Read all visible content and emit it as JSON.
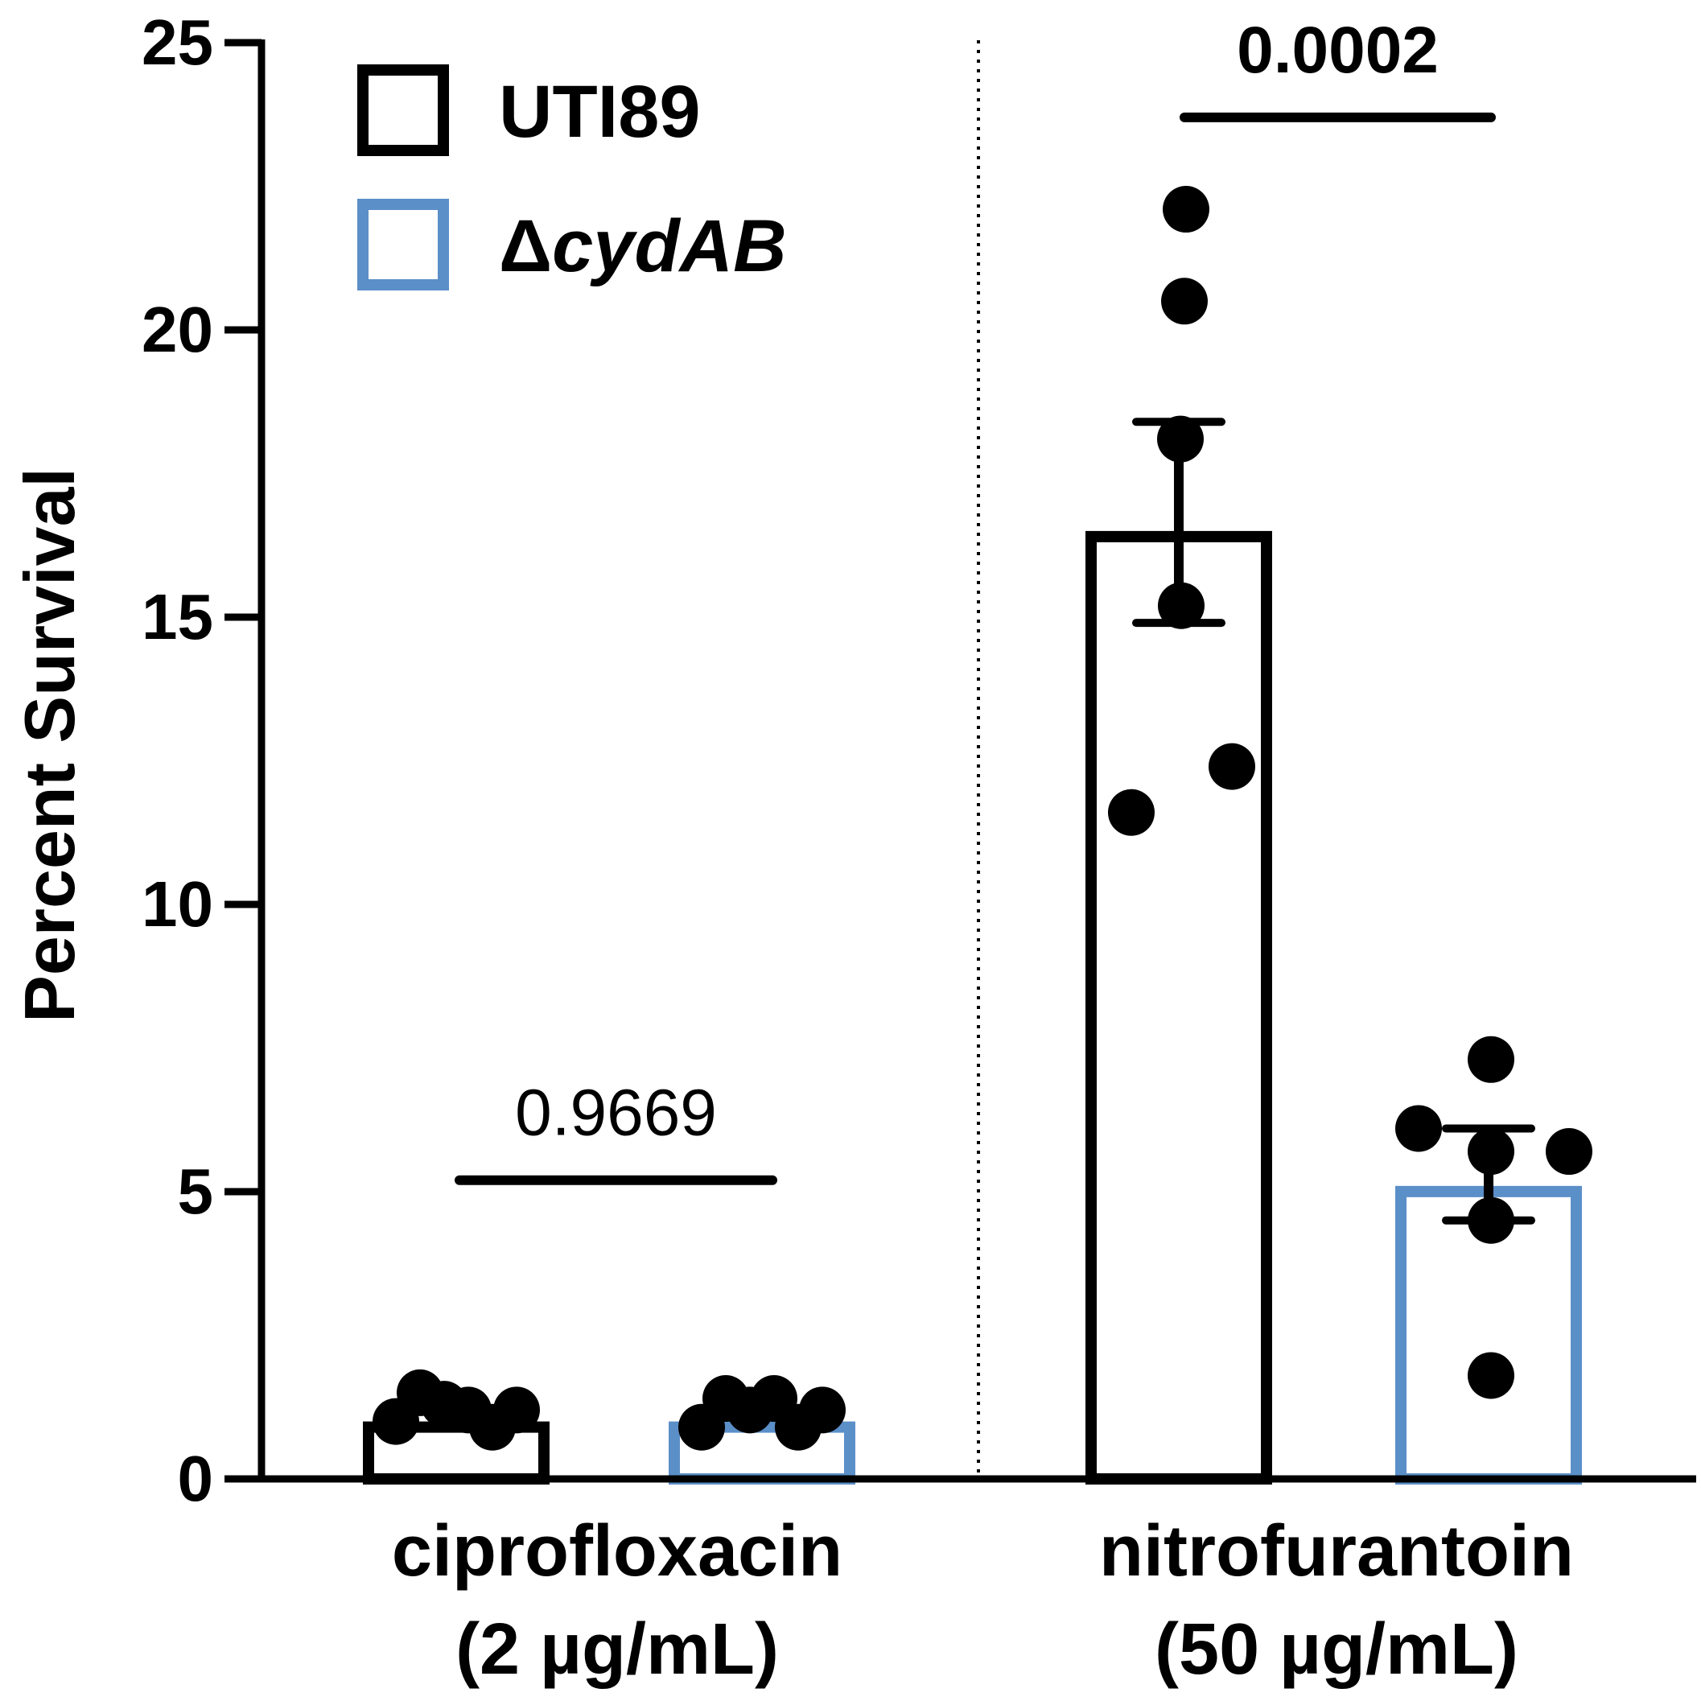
{
  "chart_data": {
    "type": "bar",
    "ylabel": "Percent Survival",
    "ylim": [
      0,
      25
    ],
    "yticks": [
      "0",
      "5",
      "10",
      "15",
      "20",
      "25"
    ],
    "categories": [
      {
        "line1": "ciprofloxacin",
        "line2": "(2 µg/mL)"
      },
      {
        "line1": "nitrofurantoin",
        "line2": "(50 µg/mL)"
      }
    ],
    "legend": {
      "placement": "top-left",
      "entries": [
        {
          "label": "UTI89",
          "prefix": "",
          "italic": false,
          "color": "#000000"
        },
        {
          "label": "cydAB",
          "prefix": "Δ",
          "italic": true,
          "color": "#5b8fc8"
        }
      ]
    },
    "series": [
      {
        "color": "#000000",
        "values": [
          1.0,
          16.5
        ],
        "sem_upper": [
          null,
          18.4
        ],
        "sem_lower": [
          null,
          14.9
        ],
        "points": [
          [
            1.0,
            1.5,
            1.3,
            1.2,
            0.9,
            1.2
          ],
          [
            22.1,
            20.5,
            18.1,
            15.2,
            12.4,
            11.6
          ]
        ]
      },
      {
        "color": "#5b8fc8",
        "values": [
          1.0,
          5.1
        ],
        "sem_upper": [
          null,
          6.1
        ],
        "sem_lower": [
          null,
          4.5
        ],
        "points": [
          [
            0.9,
            1.4,
            1.2,
            1.4,
            0.9,
            1.2
          ],
          [
            7.3,
            6.1,
            5.7,
            5.7,
            4.5,
            1.8
          ]
        ]
      }
    ],
    "comparisons": [
      {
        "category": 0,
        "label": "0.9669",
        "y": 5.2,
        "bold": false
      },
      {
        "category": 1,
        "label": "0.0002",
        "y": 23.7,
        "bold": true
      }
    ],
    "category_divider": "dotted",
    "grid": false
  }
}
